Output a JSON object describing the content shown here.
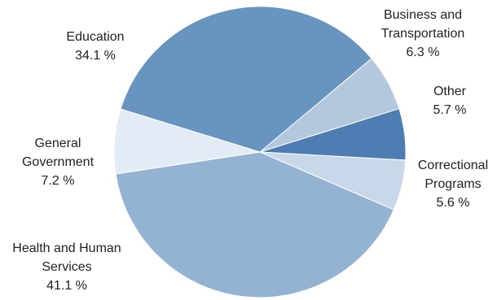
{
  "chart_data": {
    "type": "pie",
    "title": "",
    "slices": [
      {
        "label_lines": [
          "Business and",
          "Transportation"
        ],
        "value": 6.3,
        "value_label": "6.3 %",
        "color": "#b3c7dd"
      },
      {
        "label_lines": [
          "Other"
        ],
        "value": 5.7,
        "value_label": "5.7 %",
        "color": "#4e7db4"
      },
      {
        "label_lines": [
          "Correctional",
          "Programs"
        ],
        "value": 5.6,
        "value_label": "5.6 %",
        "color": "#c9d8e8"
      },
      {
        "label_lines": [
          "Health and Human",
          "Services"
        ],
        "value": 41.1,
        "value_label": "41.1 %",
        "color": "#94b2d1"
      },
      {
        "label_lines": [
          "General",
          "Government"
        ],
        "value": 7.2,
        "value_label": "7.2 %",
        "color": "#e3ebf4"
      },
      {
        "label_lines": [
          "Education"
        ],
        "value": 34.1,
        "value_label": "34.1 %",
        "color": "#6894c0"
      }
    ]
  }
}
